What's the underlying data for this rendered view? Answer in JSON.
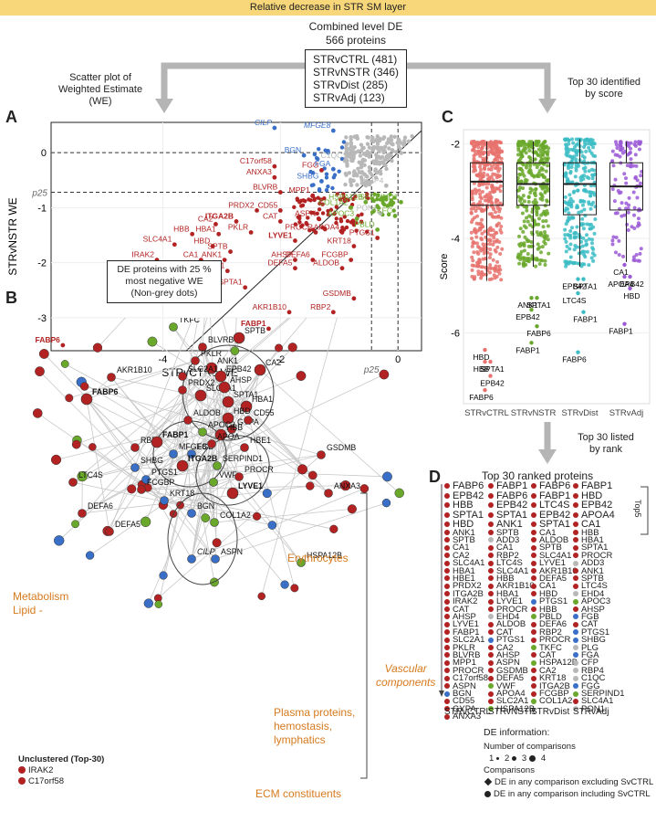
{
  "banner": "Relative decrease in STR SM layer",
  "combined": {
    "title_l1": "Combined level DE",
    "title_l2": "566 proteins",
    "items": [
      "STRvCTRL (481)",
      "STRvNSTR (346)",
      "STRvDist (285)",
      "STRvAdj (123)"
    ]
  },
  "captions": {
    "scatter": "Scatter plot of\nWeighted Estimate (WE)",
    "top30": "Top 30 identified\nby score",
    "de_box": "DE proteins with 25 %\nmost negative WE\n(Non-grey dots)",
    "ranked": "Top 30 listed\nby rank"
  },
  "panel_labels": {
    "a": "A",
    "b": "B",
    "c": "C",
    "d": "D"
  },
  "colors": {
    "red": "#b22222",
    "blue": "#3a6fc8",
    "green": "#6aa82c",
    "grey": "#b8b8b8",
    "purple": "#9b59d6",
    "teal": "#3bbcc4",
    "salmon": "#e8726d",
    "orange": "#d67a1e"
  },
  "chart_data": [
    {
      "type": "scatter",
      "panel": "A",
      "xlabel": "STRvCTRL WE",
      "ylabel": "STRvNSTR WE",
      "xlim": [
        -5.9,
        0.4
      ],
      "ylim": [
        -3.6,
        0.55
      ],
      "xticks": [
        -4,
        -2,
        0
      ],
      "yticks": [
        0,
        -1,
        -2,
        -3
      ],
      "p25_x": -0.45,
      "p25_y": -0.72,
      "p25_label": "p25",
      "diagonal": true,
      "labeled_points": [
        {
          "name": "FABP6",
          "x": -5.7,
          "y": -3.5,
          "group": "red",
          "bold": true
        },
        {
          "name": "IRAK2",
          "x": -4.1,
          "y": -1.95,
          "group": "red"
        },
        {
          "name": "HBE1",
          "x": -4.2,
          "y": -2.15,
          "group": "red"
        },
        {
          "name": "SLC4A1",
          "x": -3.8,
          "y": -1.67,
          "group": "red"
        },
        {
          "name": "HBB",
          "x": -3.5,
          "y": -1.48,
          "group": "red"
        },
        {
          "name": "CA1",
          "x": -3.35,
          "y": -1.95,
          "group": "red"
        },
        {
          "name": "GYPA",
          "x": -3.4,
          "y": -2.15,
          "group": "red"
        },
        {
          "name": "EPB42",
          "x": -3.3,
          "y": -2.3,
          "group": "red"
        },
        {
          "name": "SLC2A1",
          "x": -2.9,
          "y": -2.15,
          "group": "red"
        },
        {
          "name": "SPTA1",
          "x": -2.6,
          "y": -2.45,
          "group": "red"
        },
        {
          "name": "HBA1",
          "x": -3.05,
          "y": -1.48,
          "group": "red"
        },
        {
          "name": "ANK1",
          "x": -2.95,
          "y": -1.95,
          "group": "red"
        },
        {
          "name": "SPTB",
          "x": -2.85,
          "y": -1.8,
          "group": "red"
        },
        {
          "name": "HBD",
          "x": -3.15,
          "y": -1.7,
          "group": "red"
        },
        {
          "name": "CA2",
          "x": -3.1,
          "y": -1.3,
          "group": "red"
        },
        {
          "name": "ITGA2B",
          "x": -2.75,
          "y": -1.25,
          "group": "red",
          "bold": true
        },
        {
          "name": "PKLR",
          "x": -2.5,
          "y": -1.45,
          "group": "red"
        },
        {
          "name": "PRDX2",
          "x": -2.4,
          "y": -1.05,
          "group": "red"
        },
        {
          "name": "CD55",
          "x": -2.0,
          "y": -1.05,
          "group": "red"
        },
        {
          "name": "CAT",
          "x": -2.0,
          "y": -1.25,
          "group": "red"
        },
        {
          "name": "BLVRB",
          "x": -2.0,
          "y": -0.72,
          "group": "red"
        },
        {
          "name": "ANXA3",
          "x": -2.1,
          "y": -0.45,
          "group": "red"
        },
        {
          "name": "C17orf58",
          "x": -2.1,
          "y": -0.25,
          "group": "red"
        },
        {
          "name": "FGG",
          "x": -1.3,
          "y": -0.32,
          "group": "red"
        },
        {
          "name": "MPP1",
          "x": -1.45,
          "y": -0.78,
          "group": "red"
        },
        {
          "name": "ASPN",
          "x": -1.35,
          "y": -1.2,
          "group": "red"
        },
        {
          "name": "PROCR",
          "x": -1.4,
          "y": -1.45,
          "group": "red"
        },
        {
          "name": "APOA4",
          "x": -0.95,
          "y": -1.45,
          "group": "red"
        },
        {
          "name": "LYVE1",
          "x": -1.75,
          "y": -1.6,
          "group": "red",
          "bold": true
        },
        {
          "name": "AHSP",
          "x": -1.75,
          "y": -1.95,
          "group": "red"
        },
        {
          "name": "DEFA6",
          "x": -1.45,
          "y": -1.95,
          "group": "red"
        },
        {
          "name": "DEFA5",
          "x": -1.75,
          "y": -2.1,
          "group": "red"
        },
        {
          "name": "KRT18",
          "x": -0.75,
          "y": -1.7,
          "group": "red"
        },
        {
          "name": "PTGS1",
          "x": -0.35,
          "y": -1.55,
          "group": "red"
        },
        {
          "name": "FCGBP",
          "x": -0.8,
          "y": -1.95,
          "group": "red"
        },
        {
          "name": "ALDOB",
          "x": -0.95,
          "y": -2.1,
          "group": "red"
        },
        {
          "name": "GSDMB",
          "x": -0.75,
          "y": -2.65,
          "group": "red"
        },
        {
          "name": "RBP2",
          "x": -1.1,
          "y": -2.9,
          "group": "red"
        },
        {
          "name": "AKR1B10",
          "x": -1.85,
          "y": -2.9,
          "group": "red"
        },
        {
          "name": "FABP1",
          "x": -2.2,
          "y": -3.2,
          "group": "red",
          "bold": true
        },
        {
          "name": "CILP",
          "x": -2.1,
          "y": 0.45,
          "group": "blue"
        },
        {
          "name": "MFGE8",
          "x": -1.1,
          "y": 0.4,
          "group": "blue"
        },
        {
          "name": "BGN",
          "x": -1.6,
          "y": -0.05,
          "group": "blue"
        },
        {
          "name": "FGA",
          "x": -1.1,
          "y": -0.3,
          "group": "blue"
        },
        {
          "name": "SHBG",
          "x": -1.3,
          "y": -0.52,
          "group": "blue"
        },
        {
          "name": "C1QC",
          "x": -0.9,
          "y": -0.15,
          "group": "grey"
        },
        {
          "name": "RBP4",
          "x": -0.2,
          "y": -0.6,
          "group": "grey"
        },
        {
          "name": "PON1",
          "x": -0.3,
          "y": -1.1,
          "group": "grey"
        },
        {
          "name": "HSPA12B",
          "x": -0.55,
          "y": -0.9,
          "group": "green"
        },
        {
          "name": "SERPIND1",
          "x": 0.05,
          "y": -0.9,
          "group": "green"
        },
        {
          "name": "COL1A2",
          "x": -0.8,
          "y": -1.0,
          "group": "green"
        },
        {
          "name": "APOC3",
          "x": -0.7,
          "y": -1.2,
          "group": "green"
        },
        {
          "name": "TKFC",
          "x": -0.05,
          "y": -1.15,
          "group": "green"
        },
        {
          "name": "PBLD",
          "x": -0.35,
          "y": -1.4,
          "group": "green"
        }
      ]
    },
    {
      "type": "box",
      "panel": "C",
      "ylabel": "Score",
      "categories": [
        "STRvCTRL",
        "STRvNSTR",
        "STRvDist",
        "STRvAdj"
      ],
      "yticks": [
        -2,
        -4,
        -6
      ],
      "ylim": [
        -7.5,
        -1.7
      ],
      "box_stats": [
        {
          "q1": -3.3,
          "median": -2.8,
          "q3": -2.4,
          "lower": -4.9,
          "upper": -1.95
        },
        {
          "q1": -3.3,
          "median": -2.85,
          "q3": -2.4,
          "lower": -4.6,
          "upper": -1.95
        },
        {
          "q1": -3.5,
          "median": -2.85,
          "q3": -2.4,
          "lower": -4.6,
          "upper": -1.9
        },
        {
          "q1": -3.4,
          "median": -2.9,
          "q3": -2.4,
          "lower": -4.5,
          "upper": -1.95
        }
      ],
      "annotations": [
        {
          "col": 0,
          "labels": [
            {
              "t": "HBD",
              "y": -6.4
            },
            {
              "t": "SPTA1",
              "y": -6.65
            },
            {
              "t": "HBB",
              "y": -6.65
            },
            {
              "t": "EPB42",
              "y": -6.95
            },
            {
              "t": "FABP6",
              "y": -7.25
            }
          ]
        },
        {
          "col": 1,
          "labels": [
            {
              "t": "ANK1",
              "y": -5.3
            },
            {
              "t": "SPTA1",
              "y": -5.3
            },
            {
              "t": "EPB42",
              "y": -5.55
            },
            {
              "t": "FABP6",
              "y": -5.9
            },
            {
              "t": "FABP1",
              "y": -6.25
            }
          ]
        },
        {
          "col": 2,
          "labels": [
            {
              "t": "EPB42",
              "y": -4.9
            },
            {
              "t": "SPTA1",
              "y": -4.9
            },
            {
              "t": "LTC4S",
              "y": -5.2
            },
            {
              "t": "FABP1",
              "y": -5.6
            },
            {
              "t": "FABP6",
              "y": -6.45
            }
          ]
        },
        {
          "col": 3,
          "labels": [
            {
              "t": "CA1",
              "y": -4.6
            },
            {
              "t": "EPB42",
              "y": -4.85
            },
            {
              "t": "APOA4",
              "y": -4.85
            },
            {
              "t": "HBD",
              "y": -5.1
            },
            {
              "t": "FABP1",
              "y": -5.85
            }
          ]
        }
      ]
    }
  ],
  "network": {
    "clusters": {
      "metabolism": "Metabolism\nLipid -",
      "erythrocytes": "Erythrocytes",
      "plasma": "Plasma proteins,\nhemostasis,\nlymphatics",
      "ecm": "ECM constituents",
      "vascular": "Vascular\ncomponents"
    },
    "unclustered_title": "Unclustered (Top-30)",
    "unclustered": [
      "IRAK2",
      "C17orf58"
    ],
    "labels": [
      "MPP1",
      "CAT",
      "PBLD",
      "SPTB",
      "TKFC",
      "BLVRB",
      "PKLR",
      "ANK1",
      "CA2",
      "SLC2A1",
      "EPB42",
      "AKR1B10",
      "PRDX2",
      "SLC4A1",
      "AHSP",
      "SPTA1",
      "HBA1",
      "FABP6",
      "ALDOB",
      "HBD",
      "GYPA",
      "CD55",
      "APOC3",
      "HBB",
      "HBE1",
      "RBP2",
      "FABP1",
      "MFGE8",
      "FGB",
      "GSDMB",
      "APOA",
      "SHBG",
      "ITGA2B",
      "SERPIND1",
      "LTC4S",
      "PTGS1",
      "FCGBP",
      "VWF",
      "PROCR",
      "LYVE1",
      "ANXA3",
      "KRT18",
      "BGN",
      "COL1A2",
      "DEFA6",
      "DEFA5",
      "CILP",
      "ASPN",
      "HSPA12B"
    ]
  },
  "ranked": {
    "title": "Top 30 ranked proteins",
    "top5_label": "Top5",
    "columns": [
      {
        "name": "STRvCTRL",
        "items": [
          "FABP6",
          "EPB42",
          "HBB",
          "SPTA1",
          "HBD",
          "ANK1",
          "SPTB",
          "CA1",
          "CA2",
          "SLC4A1",
          "HBA1",
          "HBE1",
          "PRDX2",
          "ITGA2B",
          "IRAK2",
          "CAT",
          "AHSP",
          "LYVE1",
          "FABP1",
          "SLC2A1",
          "PKLR",
          "BLVRB",
          "MPP1",
          "PROCR",
          "C17orf58",
          "ASPN",
          "BGN",
          "CD55",
          "GYPA",
          "ANXA3"
        ]
      },
      {
        "name": "STRvNSTR",
        "items": [
          "FABP1",
          "FABP6",
          "EPB42",
          "SPTA1",
          "ANK1",
          "SPTB",
          "ADD3",
          "CA1",
          "RBP2",
          "LTC4S",
          "SLC4A1",
          "HBB",
          "AKR1B10",
          "HBA1",
          "LYVE1",
          "PROCR",
          "EHD4",
          "ALDOB",
          "CAT",
          "PTGS1",
          "CA2",
          "AHSP",
          "ASPN",
          "GSDMB",
          "DEFA5",
          "VWF",
          "APOA4",
          "SLC2A1",
          "HSPA12B",
          ""
        ]
      },
      {
        "name": "STRvDist",
        "items": [
          "FABP6",
          "FABP1",
          "LTC4S",
          "EPB42",
          "SPTA1",
          "CA1",
          "ALDOB",
          "SPTB",
          "SLC4A1",
          "LYVE1",
          "AKR1B10",
          "DEFA5",
          "CA1",
          "HBD",
          "PTGS1",
          "HBB",
          "PBLD",
          "DEFA6",
          "RBP2",
          "PROCR",
          "TKFC",
          "CAT",
          "HSPA12B",
          "CA2",
          "KRT18",
          "ITGA2B",
          "FCGBP",
          "COL1A2",
          "",
          ""
        ]
      },
      {
        "name": "STRvAdj",
        "items": [
          "FABP1",
          "HBD",
          "EPB42",
          "APOA4",
          "CA1",
          "HBB",
          "HBA1",
          "SPTA1",
          "PROCR",
          "ADD3",
          "ANK1",
          "SPTB",
          "LTC4S",
          "EHD4",
          "APOC3",
          "AHSP",
          "FGB",
          "CAT",
          "PTGS1",
          "SHBG",
          "PLG",
          "FGA",
          "CFP",
          "RBP4",
          "C1QC",
          "FGG",
          "SERPIND1",
          "SLC4A1",
          "PON1",
          ""
        ]
      }
    ]
  },
  "legend": {
    "title": "DE information:",
    "num_title": "Number of comparisons",
    "num_values": [
      "1",
      "2",
      "3",
      "4"
    ],
    "comp_title": "Comparisons",
    "comp_items": [
      "DE in any comparison excluding SvCTRL",
      "DE in any comparison including SvCTRL"
    ]
  }
}
